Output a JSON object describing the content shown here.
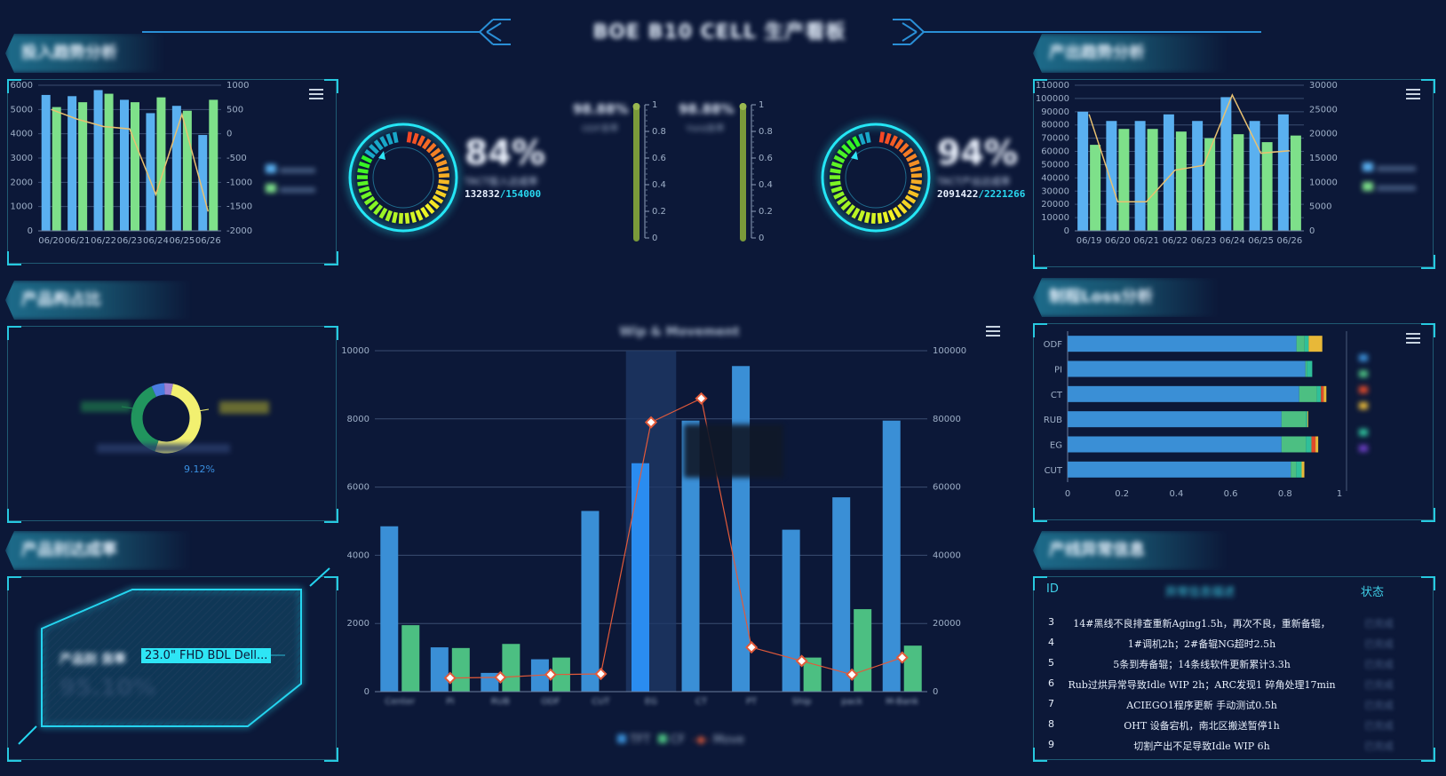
{
  "header": {
    "title": "BOE B10 CELL 生产看板"
  },
  "panels": {
    "left1_title": "投入趋势分析",
    "left2_title": "产品构占比",
    "left3_title": "产品别达成率",
    "right1_title": "产出趋势分析",
    "right2_title": "制程Loss分析",
    "right3_title": "产线异常信息"
  },
  "kpi_left": {
    "percent": "84%",
    "label": "TACT投入达成率",
    "actual": "132832",
    "target": "/154000"
  },
  "kpi_right": {
    "percent": "94%",
    "label": "TACT产出达成率",
    "actual": "2091422",
    "target": "/2221266"
  },
  "gauges": [
    {
      "title": "98.88%",
      "sub": "ODF良率",
      "ticks": [
        "1",
        "0.8",
        "0.6",
        "0.4",
        "0.2",
        "0"
      ]
    },
    {
      "title": "98.88%",
      "sub": "Yield良率",
      "ticks": [
        "1",
        "0.8",
        "0.6",
        "0.4",
        "0.2",
        "0"
      ]
    }
  ],
  "product_panel": {
    "label": "产品别 良率",
    "product": "23.0\" FHD BDL Dell...",
    "value": "95.10%"
  },
  "pie": {
    "pct_label": "9.12%"
  },
  "events": {
    "col_id": "ID",
    "col_desc": "异常信息描述",
    "col_status": "状态",
    "rows": [
      {
        "id": "3",
        "desc": "14#黑线不良排查重新Aging1.5h，再次不良，重新备辊，"
      },
      {
        "id": "4",
        "desc": "1#调机2h；2#备辊NG超时2.5h"
      },
      {
        "id": "5",
        "desc": "5条到寿备辊；14条线软件更新累计3.3h"
      },
      {
        "id": "6",
        "desc": "Rub过烘异常导致Idle WIP 2h；ARC发现1 碎角处理17min"
      },
      {
        "id": "7",
        "desc": "ACIEGO1程序更新 手动测试0.5h"
      },
      {
        "id": "8",
        "desc": "OHT 设备宕机，南北区搬送暂停1h"
      },
      {
        "id": "9",
        "desc": "切割产出不足导致Idle WIP 6h"
      }
    ],
    "status_text": "已完成"
  },
  "chart_data": [
    {
      "id": "input-trend",
      "type": "bar",
      "categories": [
        "06/20",
        "06/21",
        "06/22",
        "06/23",
        "06/24",
        "06/25",
        "06/26"
      ],
      "series": [
        {
          "values": [
            5600,
            5550,
            5800,
            5400,
            4850,
            5150,
            3950
          ],
          "color": "#5ab0f0"
        },
        {
          "values": [
            5100,
            5300,
            5650,
            5300,
            5500,
            4950,
            5400
          ],
          "color": "#7ee08a"
        },
        {
          "values": [
            500,
            300,
            150,
            100,
            -1250,
            400,
            -1600
          ],
          "color": "#e8c070",
          "type": "line"
        }
      ],
      "y_left_ticks": [
        "6000",
        "5000",
        "4000",
        "3000",
        "2000",
        "1000",
        "0"
      ],
      "y_right_ticks": [
        "1000",
        "500",
        "0",
        "-500",
        "-1000",
        "-1500",
        "-2000"
      ],
      "ylim": [
        0,
        6000
      ],
      "y2lim": [
        -2000,
        1000
      ]
    },
    {
      "id": "output-trend",
      "type": "bar",
      "categories": [
        "06/19",
        "06/20",
        "06/21",
        "06/22",
        "06/23",
        "06/24",
        "06/25",
        "06/26"
      ],
      "series": [
        {
          "values": [
            90000,
            83000,
            83000,
            88000,
            83000,
            101000,
            83000,
            88000
          ],
          "color": "#5ab0f0"
        },
        {
          "values": [
            65000,
            77000,
            77000,
            75000,
            70000,
            73000,
            67000,
            72000
          ],
          "color": "#7ee08a"
        },
        {
          "values": [
            24000,
            6000,
            6000,
            12500,
            13500,
            28000,
            16000,
            16500
          ],
          "color": "#e8c070",
          "type": "line"
        }
      ],
      "y_left_ticks": [
        "110000",
        "100000",
        "90000",
        "80000",
        "70000",
        "60000",
        "50000",
        "40000",
        "30000",
        "20000",
        "10000",
        "0"
      ],
      "y_right_ticks": [
        "30000",
        "25000",
        "20000",
        "15000",
        "10000",
        "5000",
        "0"
      ],
      "ylim": [
        0,
        110000
      ],
      "y2lim": [
        0,
        30000
      ]
    },
    {
      "id": "wip-movement",
      "type": "bar",
      "title": "Wip & Movement",
      "categories": [
        "Center",
        "PI",
        "RUB",
        "ODF",
        "CUT",
        "EG",
        "CT",
        "PT",
        "Ship",
        "pack",
        "M-Bank"
      ],
      "series": [
        {
          "name": "TFT",
          "values": [
            4850,
            1300,
            550,
            950,
            5300,
            6700,
            7950,
            9550,
            4750,
            5700,
            7950
          ],
          "color": "#3a8fd6"
        },
        {
          "name": "CF",
          "values": [
            1950,
            1280,
            1400,
            1000,
            0,
            0,
            0,
            0,
            1000,
            2420,
            1350
          ],
          "color": "#4cbf82"
        },
        {
          "name": "Move",
          "values": [
            null,
            4000,
            4200,
            5000,
            5200,
            79000,
            86000,
            13000,
            9000,
            5000,
            10000
          ],
          "color": "#e25a3a",
          "type": "line"
        }
      ],
      "y_left_ticks": [
        "10000",
        "8000",
        "6000",
        "4000",
        "2000",
        "0"
      ],
      "y_right_ticks": [
        "100000",
        "80000",
        "60000",
        "40000",
        "20000",
        "0"
      ],
      "ylim": [
        0,
        10000
      ],
      "y2lim": [
        0,
        100000
      ]
    },
    {
      "id": "loss-analysis",
      "type": "bar",
      "orientation": "horizontal",
      "categories": [
        "ODF",
        "PI",
        "CT",
        "RUB",
        "EG",
        "CUT"
      ],
      "x_ticks": [
        "0",
        "0.2",
        "0.4",
        "0.6",
        "0.8",
        "1"
      ],
      "xlim": [
        0,
        1
      ],
      "series": [
        {
          "values": [
            0.842,
            0.875,
            0.852,
            0.787,
            0.787,
            0.821
          ],
          "color": "#3a8fd6"
        },
        {
          "values": [
            0.03,
            0.005,
            0.065,
            0.09,
            0.09,
            0.02
          ],
          "color": "#4cbf82"
        },
        {
          "values": [
            0.015,
            0.02,
            0.015,
            0.005,
            0.02,
            0.02
          ],
          "color": "#2fbf9a"
        },
        {
          "values": [
            0,
            0,
            0.01,
            0,
            0.015,
            0
          ],
          "color": "#e04a2a"
        },
        {
          "values": [
            0.05,
            0,
            0.01,
            0.003,
            0.01,
            0.01
          ],
          "color": "#e8b838"
        }
      ]
    },
    {
      "id": "product-mix",
      "type": "pie",
      "values": [
        52,
        38,
        6,
        4
      ],
      "colors": [
        "#f2f070",
        "#21955e",
        "#4a7ce0",
        "#9d7fd0"
      ]
    }
  ]
}
